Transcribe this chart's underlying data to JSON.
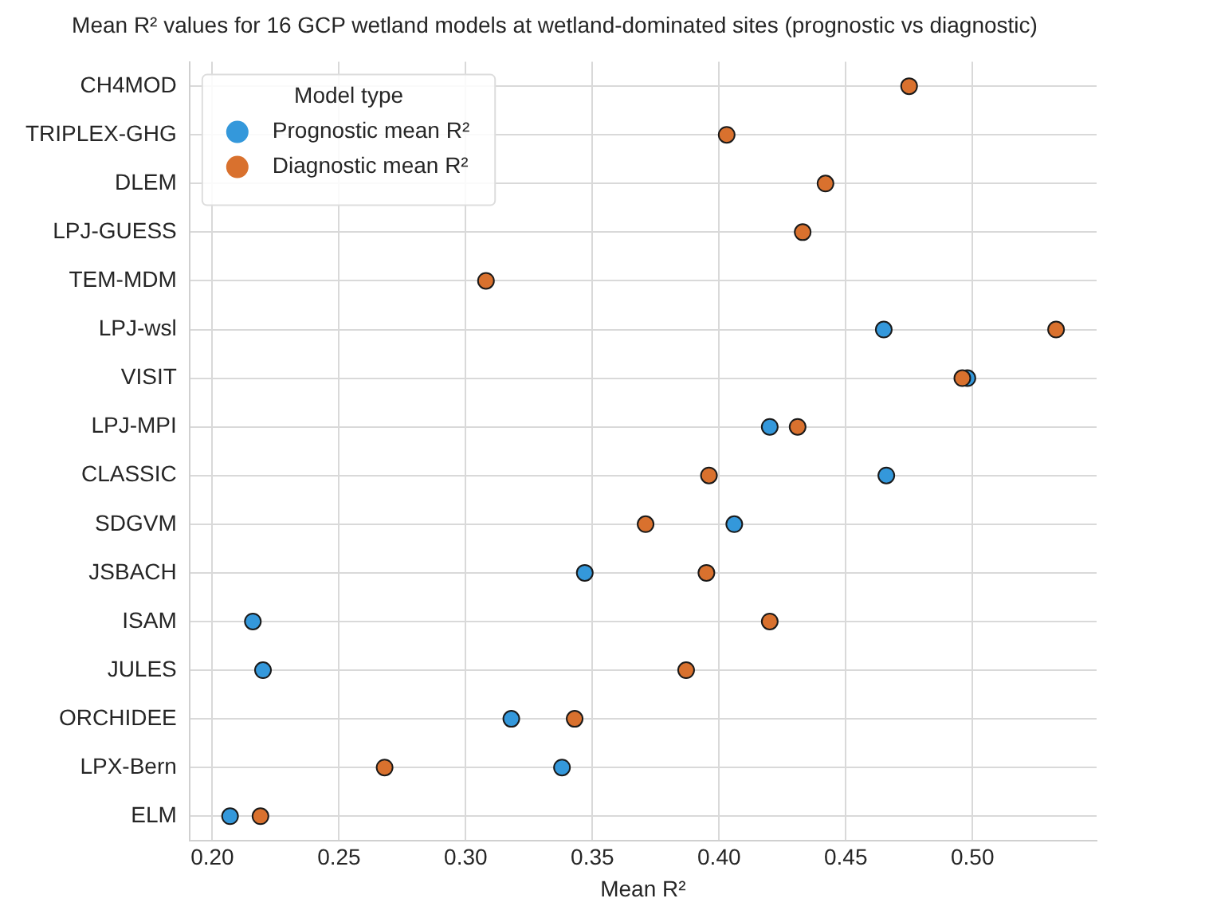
{
  "chart_data": {
    "type": "scatter",
    "title": "Mean R² values for 16 GCP wetland models at wetland-dominated sites (prognostic vs diagnostic)",
    "xlabel": "Mean R²",
    "legend_title": "Model type",
    "orientation": "horizontal",
    "categories": [
      "CH4MOD",
      "TRIPLEX-GHG",
      "DLEM",
      "LPJ-GUESS",
      "TEM-MDM",
      "LPJ-wsl",
      "VISIT",
      "LPJ-MPI",
      "CLASSIC",
      "SDGVM",
      "JSBACH",
      "ISAM",
      "JULES",
      "ORCHIDEE",
      "LPX-Bern",
      "ELM"
    ],
    "series": [
      {
        "name": "Prognostic mean R²",
        "color": "#3498db",
        "values": [
          null,
          null,
          null,
          null,
          null,
          0.465,
          0.498,
          0.42,
          0.466,
          0.406,
          0.347,
          0.216,
          0.22,
          0.318,
          0.338,
          0.207
        ]
      },
      {
        "name": "Diagnostic mean R²",
        "color": "#d9712e",
        "values": [
          0.475,
          0.403,
          0.442,
          0.433,
          0.308,
          0.533,
          0.496,
          0.431,
          0.396,
          0.371,
          0.395,
          0.42,
          0.387,
          0.343,
          0.268,
          0.219
        ]
      }
    ],
    "xlim": [
      0.191,
      0.549
    ],
    "xticks": [
      {
        "value": 0.2,
        "label": "0.20"
      },
      {
        "value": 0.25,
        "label": "0.25"
      },
      {
        "value": 0.3,
        "label": "0.30"
      },
      {
        "value": 0.35,
        "label": "0.35"
      },
      {
        "value": 0.4,
        "label": "0.40"
      },
      {
        "value": 0.45,
        "label": "0.45"
      },
      {
        "value": 0.5,
        "label": "0.50"
      }
    ],
    "grid": true,
    "legend": "top left",
    "marker": "circle"
  }
}
